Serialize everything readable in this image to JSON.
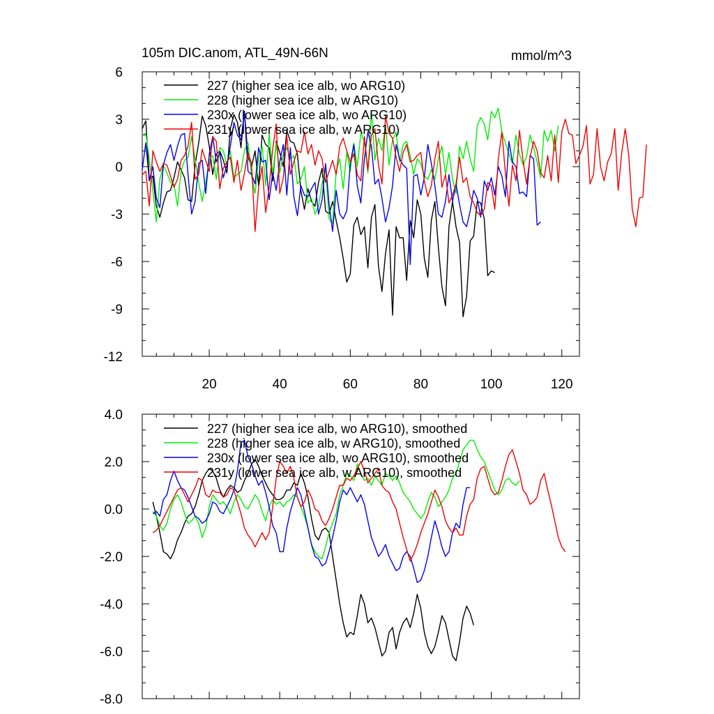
{
  "figure": {
    "title": "105m DIC.anom, ATL_49N-66N",
    "units": "mmol/m^3"
  },
  "colors": {
    "227": "#000000",
    "228": "#00ee00",
    "230": "#0000ee",
    "231": "#ee0000"
  },
  "chart_data": [
    {
      "type": "line",
      "title": "105m DIC.anom, ATL_49N-66N",
      "units_label": "mmol/m^3",
      "xlabel": "",
      "ylabel": "",
      "xlim": [
        1,
        125
      ],
      "ylim": [
        -12,
        6
      ],
      "xticks": [
        20,
        40,
        60,
        80,
        100,
        120
      ],
      "xtick_labels": [
        "20",
        "40",
        "60",
        "80",
        "100",
        "120"
      ],
      "yticks": [
        -12,
        -9,
        -6,
        -3,
        0,
        3,
        6
      ],
      "ytick_labels": [
        "-12",
        "-9",
        "-6",
        "-3",
        "0",
        "3",
        "6"
      ],
      "legend_position": "top-left",
      "grid": false,
      "series": [
        {
          "name": "227 (higher sea ice alb, wo ARG10)",
          "color_key": "227",
          "x_start": 1,
          "values": [
            2.4,
            2.9,
            -0.8,
            -0.6,
            -2.5,
            -3.2,
            -2.3,
            -1.6,
            -1.5,
            -0.7,
            0.3,
            -0.2,
            -0.7,
            -2.1,
            -2.2,
            0.1,
            1.5,
            3.2,
            2.6,
            1.3,
            -0.5,
            0.8,
            1.0,
            0.4,
            -0.4,
            2.4,
            3.3,
            2.8,
            1.2,
            3.5,
            0.6,
            0.0,
            1.0,
            -1.2,
            2.0,
            1.4,
            1.2,
            -0.9,
            1.6,
            0.9,
            0.0,
            2.3,
            1.6,
            1.5,
            0.8,
            -1.5,
            -2.7,
            -1.4,
            -2.2,
            -2.5,
            -1.0,
            -0.1,
            -2.8,
            -3.0,
            -2.2,
            -3.4,
            -4.5,
            -5.8,
            -7.3,
            -6.8,
            -3.7,
            -3.2,
            -4.3,
            -3.8,
            -6.4,
            -3.2,
            -2.4,
            -6.3,
            -7.9,
            -5.5,
            -4.0,
            -9.4,
            -3.8,
            -4.5,
            -4.5,
            -7.2,
            -3.4,
            -4.5,
            -2.1,
            -3.0,
            -5.8,
            -7.0,
            -3.4,
            -2.2,
            -5.1,
            -7.6,
            -8.8,
            -3.8,
            -2.2,
            -3.8,
            -4.8,
            -9.5,
            -8.2,
            -4.7,
            -4.4,
            -2.2,
            -2.3,
            -3.3,
            -6.9,
            -6.6,
            -6.7
          ]
        },
        {
          "name": "228 (higher sea ice alb, w ARG10)",
          "color_key": "228",
          "x_start": 1,
          "values": [
            2.0,
            2.1,
            0.5,
            -1.5,
            -3.5,
            -0.8,
            0.1,
            -0.4,
            -1.0,
            -1.1,
            -2.5,
            -0.3,
            0.4,
            0.6,
            1.9,
            0.5,
            -1.0,
            -2.2,
            -1.0,
            0.4,
            0.7,
            -0.8,
            1.2,
            1.0,
            0.1,
            1.0,
            -0.7,
            -0.5,
            -0.3,
            1.0,
            1.5,
            -0.6,
            -1.7,
            0.5,
            1.3,
            -1.2,
            2.1,
            -0.5,
            1.5,
            -0.4,
            0.8,
            1.2,
            0.5,
            0.7,
            -1.1,
            -0.8,
            0.0,
            -2.3,
            -2.0,
            -3.0,
            -2.5,
            -1.1,
            0.0,
            -3.3,
            -3.6,
            -0.3,
            0.5,
            -1.4,
            0.9,
            -0.3,
            1.5,
            0.0,
            2.1,
            1.6,
            -0.4,
            3.5,
            0.4,
            1.8,
            1.0,
            2.6,
            0.1,
            1.7,
            2.2,
            0.3,
            1.4,
            1.6,
            0.7,
            -0.5,
            0.5,
            0.2,
            -0.6,
            -0.8,
            -0.2,
            -0.8,
            0.5,
            1.3,
            -0.5,
            0.9,
            -0.8,
            -1.7,
            1.3,
            0.5,
            1.6,
            0.5,
            -0.3,
            2.6,
            3.1,
            2.7,
            1.7,
            3.5,
            3.1,
            3.7,
            2.2,
            1.5,
            0.8,
            0.2,
            2.0,
            0.8,
            0.1,
            0.6,
            2.0,
            1.2,
            0.3,
            -0.7,
            2.3,
            1.6,
            2.3,
            1.0,
            2.6
          ]
        },
        {
          "name": "230x (lower sea ice alb, wo ARG10)",
          "color_key": "230",
          "x_start": 1,
          "values": [
            -0.2,
            1.5,
            -0.9,
            0.0,
            -2.0,
            -2.6,
            0.1,
            0.9,
            1.4,
            0.4,
            1.3,
            2.0,
            2.1,
            -0.5,
            -3.0,
            -2.2,
            0.2,
            0.4,
            -1.7,
            0.8,
            1.9,
            0.3,
            0.9,
            -0.7,
            0.1,
            1.3,
            2.8,
            2.0,
            1.7,
            3.5,
            -0.3,
            -0.5,
            -1.1,
            1.2,
            0.3,
            0.4,
            -2.1,
            -0.4,
            -1.5,
            0.3,
            1.4,
            -1.8,
            1.2,
            -1.9,
            -3.1,
            -1.2,
            -1.8,
            -1.9,
            -1.4,
            -1.0,
            -3.0,
            -2.1,
            0.2,
            -2.4,
            -4.1,
            -1.5,
            -3.0,
            -3.3,
            -2.8,
            0.2,
            1.4,
            -1.2,
            -2.3,
            0.5,
            2.2,
            1.3,
            -1.1,
            -0.8,
            -2.0,
            -3.5,
            -2.6,
            -1.2,
            1.4,
            0.5,
            0.1,
            -0.1,
            -6.2,
            -0.6,
            -0.5,
            -1.8,
            -0.7,
            1.4,
            0.2,
            -1.2,
            -3.0,
            -3.2,
            -2.2,
            -0.5,
            -2.2,
            -1.1,
            -2.4,
            -3.5,
            -3.8,
            -2.8,
            -1.5,
            -2.0,
            -3.2,
            -0.9,
            -1.5,
            -0.7,
            -1.8,
            0.0,
            -0.6,
            -1.9,
            1.6,
            0.3,
            0.0,
            -1.7,
            -1.6,
            -1.9,
            0.7,
            0.5,
            -3.7,
            -3.5
          ]
        },
        {
          "name": "231y (lower sea ice alb, w ARG10)",
          "color_key": "231",
          "x_start": 1,
          "values": [
            -0.5,
            -0.3,
            -2.5,
            1.0,
            0.3,
            -0.3,
            0.2,
            0.1,
            -0.6,
            -1.3,
            -0.8,
            0.4,
            0.7,
            1.3,
            2.8,
            -0.8,
            -0.5,
            1.1,
            0.4,
            -0.3,
            1.9,
            1.6,
            -1.4,
            -0.1,
            0.3,
            0.6,
            -1.0,
            0.4,
            -1.5,
            -0.4,
            0.9,
            0.2,
            -4.1,
            -1.3,
            0.0,
            -2.9,
            -1.3,
            1.1,
            2.7,
            -1.7,
            -0.7,
            2.0,
            -0.5,
            0.3,
            1.0,
            0.9,
            2.2,
            0.8,
            1.4,
            0.1,
            1.0,
            0.5,
            -1.0,
            -0.3,
            0.4,
            -0.5,
            1.3,
            1.8,
            1.0,
            0.3,
            0.8,
            -0.5,
            -0.9,
            1.9,
            -0.2,
            2.0,
            2.4,
            0.1,
            -1.1,
            3.2,
            2.1,
            1.8,
            0.6,
            -0.3,
            0.9,
            1.4,
            0.3,
            0.4,
            0.7,
            0.9,
            -0.9,
            -1.9,
            -1.2,
            0.5,
            1.6,
            -1.3,
            -0.5,
            -2.3,
            -1.8,
            -1.1,
            0.6,
            -1.0,
            -0.7,
            -1.9,
            -2.3,
            -2.9,
            -3.1,
            -2.7,
            -1.0,
            -1.2,
            -2.7,
            0.5,
            2.2,
            -0.4,
            -2.5,
            0.1,
            -0.9,
            2.3,
            0.4,
            -1.1,
            0.6,
            1.6,
            1.0,
            -0.4,
            -0.7,
            0.7,
            -0.9,
            2.0,
            -1.0,
            2.2,
            3.0,
            2.1,
            2.0,
            0.2,
            0.7,
            1.3,
            2.6,
            -1.1,
            -0.5,
            2.4,
            0.0,
            -0.9,
            0.3,
            0.8,
            2.4,
            -1.5,
            0.9,
            2.4,
            0.7,
            -2.7,
            -3.8,
            -2.0,
            -1.9,
            1.4
          ]
        }
      ]
    },
    {
      "type": "line",
      "title": "",
      "xlabel": "",
      "ylabel": "",
      "xlim": [
        1,
        125
      ],
      "ylim": [
        -8,
        4
      ],
      "xticks": [
        20,
        40,
        60,
        80,
        100,
        120
      ],
      "yticks": [
        -8,
        -6,
        -4,
        -2,
        0,
        2,
        4
      ],
      "ytick_labels": [
        "-8.0",
        "-6.0",
        "-4.0",
        "-2.0",
        "0.0",
        "2.0",
        "4.0"
      ],
      "legend_position": "top-left",
      "grid": false,
      "series": [
        {
          "name": "227 (higher sea ice alb, wo ARG10), smoothed",
          "color_key": "227",
          "x_start": 4,
          "values": [
            0.3,
            -0.3,
            -1.0,
            -1.8,
            -1.9,
            -2.1,
            -1.8,
            -1.3,
            -1.0,
            -0.6,
            -0.3,
            -0.2,
            0.1,
            0.6,
            1.2,
            1.5,
            1.7,
            1.6,
            1.3,
            0.8,
            0.5,
            0.8,
            1.0,
            0.9,
            0.7,
            0.8,
            1.2,
            1.5,
            1.9,
            2.1,
            1.8,
            1.4,
            1.1,
            0.8,
            0.6,
            0.4,
            0.4,
            0.5,
            0.8,
            0.8,
            1.1,
            1.0,
            1.5,
            1.1,
            0.5,
            -0.4,
            -1.1,
            -1.3,
            -0.9,
            -0.8,
            -1.0,
            -2.0,
            -3.0,
            -4.0,
            -4.8,
            -5.4,
            -5.2,
            -5.3,
            -4.5,
            -3.6,
            -4.0,
            -4.8,
            -4.6,
            -5.0,
            -5.6,
            -6.2,
            -6.0,
            -5.2,
            -5.0,
            -5.9,
            -5.2,
            -4.8,
            -4.6,
            -5.0,
            -4.4,
            -3.6,
            -4.2,
            -5.2,
            -5.8,
            -6.1,
            -5.8,
            -5.2,
            -4.5,
            -4.8,
            -5.5,
            -6.2,
            -6.4,
            -5.6,
            -4.6,
            -4.1,
            -4.4,
            -4.9
          ]
        },
        {
          "name": "228 (higher sea ice alb, w ARG10), smoothed",
          "color_key": "228",
          "x_start": 4,
          "values": [
            -0.1,
            -0.3,
            -0.7,
            -0.9,
            -0.6,
            0.0,
            0.4,
            0.6,
            0.3,
            -0.2,
            -0.6,
            -0.5,
            -0.3,
            -0.6,
            -1.2,
            -0.8,
            0.1,
            0.6,
            0.4,
            0.2,
            0.3,
            0.1,
            -0.2,
            0.3,
            0.6,
            0.4,
            0.1,
            0.0,
            0.3,
            0.6,
            0.4,
            -0.1,
            -0.5,
            0.1,
            0.4,
            0.2,
            0.3,
            0.1,
            0.3,
            0.4,
            0.6,
            0.5,
            0.1,
            -0.3,
            -0.8,
            -1.5,
            -1.8,
            -2.0,
            -2.1,
            -1.6,
            -1.0,
            -0.6,
            -0.2,
            0.6,
            1.0,
            1.5,
            1.4,
            1.2,
            1.9,
            1.5,
            1.2,
            1.3,
            1.0,
            1.4,
            1.2,
            1.0,
            1.5,
            1.4,
            1.2,
            1.4,
            1.1,
            0.7,
            0.5,
            0.3,
            0.0,
            -0.2,
            -0.4,
            -0.2,
            0.3,
            0.7,
            0.5,
            0.1,
            0.3,
            0.5,
            0.8,
            1.3,
            1.5,
            2.0,
            2.5,
            2.7,
            2.9,
            2.9,
            2.5,
            2.2,
            2.0,
            1.6,
            1.2,
            0.8,
            0.6,
            0.8,
            1.2,
            1.3,
            1.1,
            1.0,
            1.2
          ]
        },
        {
          "name": "230x (lower sea ice alb, wo ARG10), smoothed",
          "color_key": "230",
          "x_start": 4,
          "values": [
            -0.2,
            -0.1,
            -0.3,
            0.4,
            0.6,
            1.2,
            1.6,
            1.2,
            0.9,
            0.8,
            0.5,
            0.1,
            -0.3,
            -0.4,
            -0.6,
            -0.5,
            -0.2,
            0.3,
            0.2,
            -0.1,
            -0.2,
            0.1,
            0.4,
            0.8,
            1.6,
            2.8,
            2.9,
            2.2,
            1.9,
            1.4,
            1.0,
            1.2,
            0.7,
            0.1,
            -0.7,
            -1.0,
            -1.8,
            -1.8,
            -0.8,
            -0.1,
            0.4,
            0.9,
            0.6,
            -0.1,
            -0.8,
            -1.5,
            -2.0,
            -2.1,
            -2.4,
            -2.3,
            -1.8,
            -1.2,
            -0.5,
            0.3,
            0.8,
            0.6,
            0.9,
            0.6,
            0.3,
            0.6,
            0.2,
            -0.5,
            -1.2,
            -1.6,
            -2.0,
            -1.8,
            -1.5,
            -2.0,
            -2.3,
            -2.6,
            -2.5,
            -2.0,
            -1.8,
            -2.0,
            -2.5,
            -3.1,
            -3.0,
            -2.6,
            -2.0,
            -1.2,
            -0.5,
            -1.0,
            -1.6,
            -2.0,
            -1.8,
            -1.0,
            -0.6,
            -0.8,
            0.2,
            0.9,
            0.9
          ]
        },
        {
          "name": "231y (lower sea ice alb, w ARG10), smoothed",
          "color_key": "231",
          "x_start": 4,
          "values": [
            -1.0,
            -0.9,
            -0.7,
            -0.4,
            -0.1,
            0.2,
            0.5,
            0.8,
            0.9,
            0.6,
            0.3,
            0.6,
            0.9,
            1.3,
            1.2,
            0.6,
            0.5,
            0.8,
            0.7,
            0.7,
            0.5,
            0.6,
            0.9,
            0.8,
            0.3,
            -0.2,
            -0.8,
            -1.1,
            -1.3,
            -1.6,
            -1.3,
            -1.0,
            -1.3,
            -1.0,
            0.1,
            1.3,
            2.0,
            1.8,
            1.5,
            1.8,
            1.3,
            0.5,
            0.1,
            0.3,
            0.8,
            0.5,
            0.0,
            -0.1,
            -0.5,
            -0.7,
            -0.4,
            0.0,
            0.5,
            1.0,
            1.0,
            1.3,
            1.2,
            1.4,
            1.7,
            2.0,
            1.6,
            1.1,
            1.3,
            1.5,
            1.7,
            1.0,
            0.8,
            0.7,
            0.3,
            0.0,
            -0.6,
            -1.2,
            -1.7,
            -2.2,
            -1.9,
            -1.5,
            -1.0,
            -0.6,
            -0.2,
            0.3,
            0.8,
            0.5,
            0.1,
            -0.5,
            -0.8,
            -1.0,
            -0.8,
            -1.1,
            -1.1,
            -0.3,
            0.2,
            0.4,
            1.3,
            1.7,
            1.8,
            1.3,
            0.8,
            0.6,
            0.7,
            1.2,
            1.8,
            2.3,
            2.5,
            2.0,
            1.5,
            0.8,
            0.6,
            0.2,
            0.3,
            0.5,
            1.2,
            1.5,
            0.8,
            0.2,
            -0.5,
            -1.2,
            -1.6,
            -1.8
          ]
        }
      ]
    }
  ]
}
